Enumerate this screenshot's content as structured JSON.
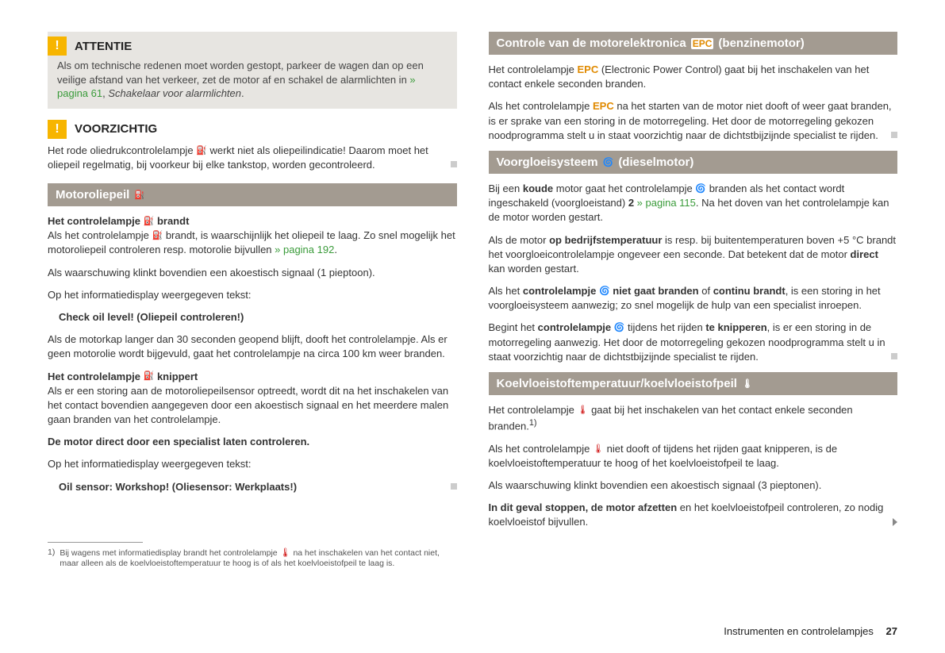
{
  "colors": {
    "background": "#ffffff",
    "text": "#333333",
    "section_header_bg": "#a39b91",
    "section_header_text": "#ffffff",
    "attention_bg": "#e7e5e1",
    "warn_icon_bg": "#f7b500",
    "green_link": "#3a9b3a",
    "orange": "#e08a00",
    "red": "#cc0000",
    "footnote_sep": "#999999"
  },
  "typography": {
    "body_fontsize": 13,
    "header_fontsize": 15,
    "footnote_fontsize": 10.5,
    "font_family": "Arial, Helvetica, sans-serif"
  },
  "left": {
    "attention": {
      "icon": "!",
      "title": "ATTENTIE",
      "body_pre": "Als om technische redenen moet worden gestopt, parkeer de wagen dan op een veilige afstand van het verkeer, zet de motor af en schakel de alarmlichten in ",
      "body_link": "» pagina 61",
      "body_post": ", ",
      "body_italic": "Schakelaar voor alarmlichten",
      "body_end": "."
    },
    "caution": {
      "icon": "!",
      "title": "VOORZICHTIG",
      "body_pre": "Het rode oliedrukcontrolelampje ",
      "body_icon": "⛽",
      "body_post": " werkt niet als oliepeilindicatie! Daarom moet het oliepeil regelmatig, bij voorkeur bij elke tankstop, worden gecontroleerd."
    },
    "section_oil": {
      "title": "Motoroliepeil ",
      "title_icon": "⛽",
      "p1_bold": "Het controlelampje ",
      "p1_icon": "⛽",
      "p1_bold2": " brandt",
      "p1_body": "Als het controlelampje ",
      "p1_body_icon": "⛽",
      "p1_body2": " brandt, is waarschijnlijk het oliepeil te laag. Zo snel mogelijk het motoroliepeil controleren resp. motorolie bijvullen ",
      "p1_link": "» pagina 192",
      "p1_end": ".",
      "p2": "Als waarschuwing klinkt bovendien een akoestisch signaal (1 pieptoon).",
      "p3": "Op het informatiedisplay weergegeven tekst:",
      "p4_bold": "Check oil level! (Oliepeil controleren!)",
      "p5": "Als de motorkap langer dan 30 seconden geopend blijft, dooft het controlelampje. Als er geen motorolie wordt bijgevuld, gaat het controlelampje na circa 100 km weer branden.",
      "p6_bold": "Het controlelampje ",
      "p6_icon": "⛽",
      "p6_bold2": " knippert",
      "p6_body": "Als er een storing aan de motoroliepeilsensor optreedt, wordt dit na het inschakelen van het contact bovendien aangegeven door een akoestisch signaal en het meerdere malen gaan branden van het controlelampje.",
      "p7_bold": "De motor direct door een specialist laten controleren.",
      "p8": "Op het informatiedisplay weergegeven tekst:",
      "p9_bold": "Oil sensor: Workshop! (Oliesensor: Werkplaats!)"
    },
    "footnote": {
      "num": "1)",
      "text_pre": "Bij wagens met informatiedisplay brandt het controlelampje ",
      "text_icon": "🌡",
      "text_post": " na het inschakelen van het contact niet, maar alleen als de koelvloeistoftemperatuur te hoog is of als het koelvloeistofpeil te laag is."
    }
  },
  "right": {
    "section_epc": {
      "title_pre": "Controle van de motorelektronica ",
      "title_badge": "EPC",
      "title_post": " (benzinemotor)",
      "p1_pre": "Het controlelampje ",
      "p1_badge": "EPC",
      "p1_post": " (Electronic Power Control) gaat bij het inschakelen van het contact enkele seconden branden.",
      "p2_pre": "Als het controlelampje ",
      "p2_badge": "EPC",
      "p2_post": " na het starten van de motor niet dooft of weer gaat branden, is er sprake van een storing in de motorregeling. Het door de motorregeling gekozen noodprogramma stelt u in staat voorzichtig naar de dichtstbijzijnde specialist te rijden."
    },
    "section_glow": {
      "title_pre": "Voorgloeisysteem ",
      "title_icon": "🌀",
      "title_post": " (dieselmotor)",
      "p1_pre": "Bij een ",
      "p1_bold1": "koude",
      "p1_mid": " motor gaat het controlelampje ",
      "p1_icon": "🌀",
      "p1_mid2": " branden als het contact wordt ingeschakeld (voorgloeistand) ",
      "p1_bold2": "2",
      "p1_link": " » pagina 115",
      "p1_post": ". Na het doven van het controlelampje kan de motor worden gestart.",
      "p2_pre": "Als de motor ",
      "p2_bold1": "op bedrijfstemperatuur",
      "p2_mid": " is resp. bij buitentemperaturen boven +5 °C brandt het voorgloeicontrolelampje ongeveer een seconde. Dat betekent dat de motor ",
      "p2_bold2": "direct",
      "p2_post": " kan worden gestart.",
      "p3_pre": "Als het ",
      "p3_bold1": "controlelampje ",
      "p3_icon": "🌀",
      "p3_bold2": " niet gaat branden",
      "p3_mid": " of ",
      "p3_bold3": "continu brandt",
      "p3_post": ", is een storing in het voorgloeisysteem aanwezig; zo snel mogelijk de hulp van een specialist inroepen.",
      "p4_pre": "Begint het ",
      "p4_bold1": "controlelampje ",
      "p4_icon": "🌀",
      "p4_mid": " tijdens het rijden ",
      "p4_bold2": "te knipperen",
      "p4_post": ", is er een storing in de motorregeling aanwezig. Het door de motorregeling gekozen noodprogramma stelt u in staat voorzichtig naar de dichtstbijzijnde specialist te rijden."
    },
    "section_coolant": {
      "title": "Koelvloeistoftemperatuur/koelvloeistofpeil ",
      "title_icon": "🌡",
      "p1_pre": "Het controlelampje ",
      "p1_icon": "🌡",
      "p1_post": " gaat bij het inschakelen van het contact enkele seconden branden.",
      "p1_sup": "1)",
      "p2_pre": "Als het controlelampje ",
      "p2_icon": "🌡",
      "p2_post": " niet dooft of tijdens het rijden gaat knipperen, is de koelvloeistoftemperatuur te hoog of het koelvloeistofpeil te laag.",
      "p3": "Als waarschuwing klinkt bovendien een akoestisch signaal (3 pieptonen).",
      "p4_bold": "In dit geval stoppen, de motor afzetten",
      "p4_post": " en het koelvloeistofpeil controleren, zo nodig koelvloeistof bijvullen."
    }
  },
  "footer": {
    "chapter": "Instrumenten en controlelampjes",
    "page": "27"
  }
}
